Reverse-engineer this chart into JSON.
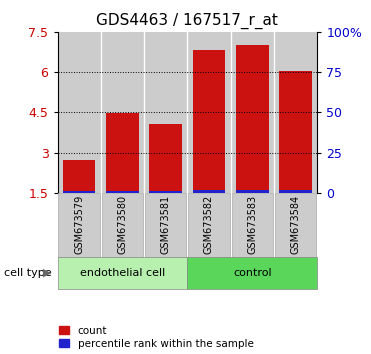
{
  "title": "GDS4463 / 167517_r_at",
  "samples": [
    "GSM673579",
    "GSM673580",
    "GSM673581",
    "GSM673582",
    "GSM673583",
    "GSM673584"
  ],
  "red_values": [
    2.72,
    4.48,
    4.08,
    6.82,
    7.0,
    6.05
  ],
  "blue_values": [
    0.08,
    0.08,
    0.09,
    0.1,
    0.1,
    0.12
  ],
  "base": 1.5,
  "ylim_left": [
    1.5,
    7.5
  ],
  "yticks_left": [
    1.5,
    3.0,
    4.5,
    6.0,
    7.5
  ],
  "ytick_labels_left": [
    "1.5",
    "3",
    "4.5",
    "6",
    "7.5"
  ],
  "ylim_right": [
    0,
    100
  ],
  "yticks_right": [
    0,
    25,
    50,
    75,
    100
  ],
  "ytick_labels_right": [
    "0",
    "25",
    "50",
    "75",
    "100%"
  ],
  "group_labels": [
    "endothelial cell",
    "control"
  ],
  "group_colors_light": [
    "#b8f0b0",
    "#5ad65a"
  ],
  "group_sizes": [
    3,
    3
  ],
  "cell_type_label": "cell type",
  "legend_red": "count",
  "legend_blue": "percentile rank within the sample",
  "red_color": "#cc1111",
  "blue_color": "#2222cc",
  "bar_bg_color": "#cccccc",
  "bar_width": 0.75,
  "grid_color": "#000000",
  "title_fontsize": 11,
  "tick_label_color_left": "#cc0000",
  "tick_label_color_right": "#0000cc",
  "plot_bg": "#ffffff"
}
